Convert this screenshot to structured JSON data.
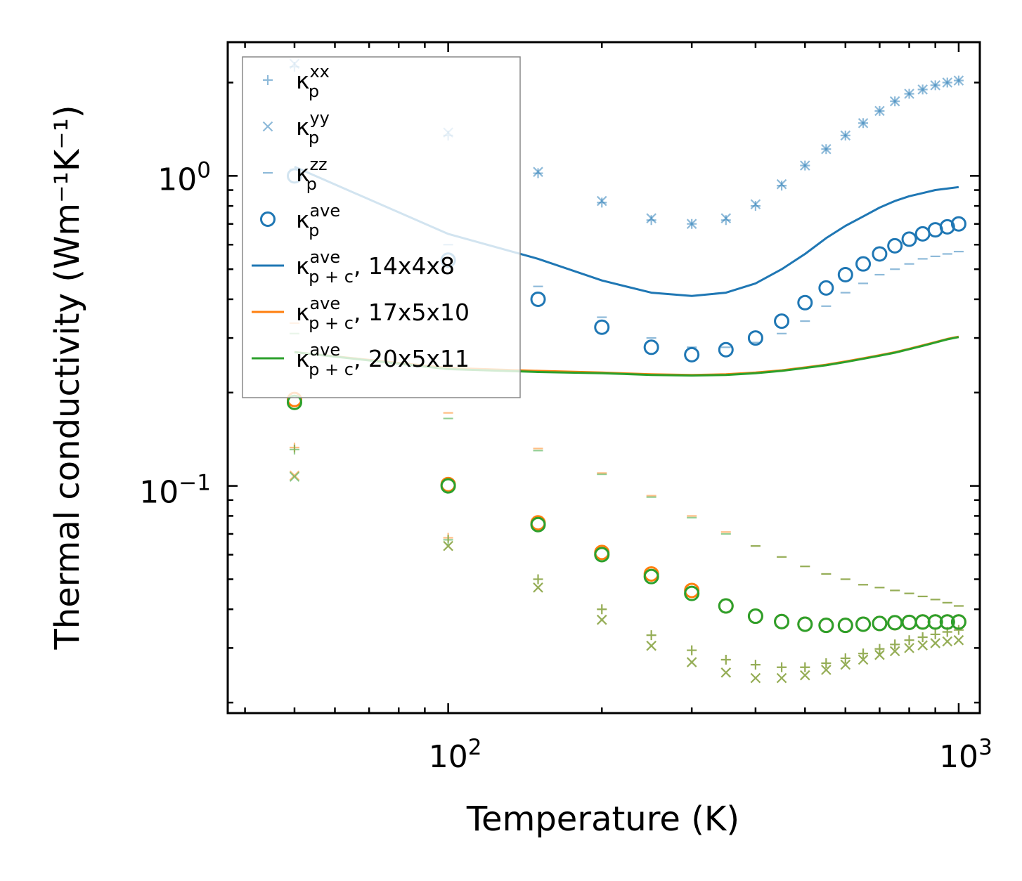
{
  "chart_data": {
    "type": "scatter",
    "xscale": "log",
    "yscale": "log",
    "xlabel": "Temperature (K)",
    "ylabel": "Thermal conductivity (Wm⁻¹K⁻¹)",
    "xlim": [
      37,
      1100
    ],
    "ylim": [
      0.0185,
      2.7
    ],
    "x_ticks": [
      {
        "base": "10",
        "exp": "2"
      },
      {
        "base": "10",
        "exp": "3"
      }
    ],
    "y_ticks": [
      {
        "base": "10",
        "exp": "−1"
      },
      {
        "base": "10",
        "exp": "0"
      }
    ],
    "x": [
      50,
      100,
      150,
      200,
      250,
      300,
      350,
      400,
      450,
      500,
      550,
      600,
      650,
      700,
      750,
      800,
      850,
      900,
      950,
      1000
    ],
    "series": [
      {
        "name": "14x4x8 kappa_p xx",
        "marker": "plus",
        "color": "#1f77b4",
        "values": [
          2.25,
          1.35,
          1.02,
          0.82,
          0.72,
          0.7,
          0.72,
          0.8,
          0.93,
          1.08,
          1.22,
          1.35,
          1.48,
          1.62,
          1.74,
          1.84,
          1.9,
          1.96,
          2.0,
          2.03
        ]
      },
      {
        "name": "14x4x8 kappa_p yy",
        "marker": "x",
        "color": "#1f77b4",
        "values": [
          2.3,
          1.38,
          1.03,
          0.83,
          0.73,
          0.7,
          0.73,
          0.81,
          0.94,
          1.08,
          1.22,
          1.35,
          1.48,
          1.62,
          1.74,
          1.84,
          1.9,
          1.96,
          2.0,
          2.03
        ]
      },
      {
        "name": "14x4x8 kappa_p zz",
        "marker": "dash",
        "color": "#1f77b4",
        "values": [
          1.05,
          0.6,
          0.44,
          0.35,
          0.3,
          0.28,
          0.28,
          0.29,
          0.31,
          0.34,
          0.38,
          0.42,
          0.45,
          0.48,
          0.5,
          0.52,
          0.54,
          0.55,
          0.56,
          0.57
        ]
      },
      {
        "name": "14x4x8 kappa_p ave",
        "marker": "circle",
        "color": "#1f77b4",
        "values": [
          1.0,
          0.535,
          0.4,
          0.325,
          0.28,
          0.265,
          0.275,
          0.3,
          0.34,
          0.39,
          0.435,
          0.48,
          0.52,
          0.56,
          0.595,
          0.625,
          0.65,
          0.67,
          0.685,
          0.7
        ]
      },
      {
        "name": "17x5x10 kappa_p xx",
        "marker": "plus",
        "color": "#ff7f0e",
        "values": [
          0.133,
          0.068,
          0.05,
          0.04,
          0.033,
          0.0295,
          0.0275,
          0.0265,
          0.026,
          0.026,
          0.0268,
          0.0278,
          0.0288,
          0.0298,
          0.0308,
          0.0318,
          0.0325,
          0.0332,
          0.0338,
          0.0343
        ]
      },
      {
        "name": "17x5x10 kappa_p yy",
        "marker": "x",
        "color": "#ff7f0e",
        "values": [
          0.108,
          0.064,
          0.047,
          0.037,
          0.0305,
          0.027,
          0.025,
          0.024,
          0.024,
          0.0245,
          0.0255,
          0.0265,
          0.0275,
          0.0285,
          0.0293,
          0.03,
          0.0306,
          0.0311,
          0.0315,
          0.0318
        ]
      },
      {
        "name": "17x5x10 kappa_p zz",
        "marker": "dash",
        "color": "#ff7f0e",
        "values": [
          0.335,
          0.172,
          0.132,
          0.11,
          0.093,
          0.08,
          0.071,
          0.064,
          0.059,
          0.055,
          0.052,
          0.05,
          0.048,
          0.047,
          0.046,
          0.045,
          0.044,
          0.043,
          0.042,
          0.041
        ]
      },
      {
        "name": "17x5x10 kappa_p ave",
        "marker": "circle",
        "color": "#ff7f0e",
        "values": [
          0.19,
          0.101,
          0.076,
          0.061,
          0.052,
          0.046,
          0.041,
          0.038,
          0.0365,
          0.0358,
          0.0355,
          0.0355,
          0.0358,
          0.036,
          0.0362,
          0.0363,
          0.0364,
          0.0364,
          0.0364,
          0.0364
        ]
      },
      {
        "name": "20x5x11 kappa_p xx",
        "marker": "plus",
        "color": "#2ca02c",
        "values": [
          0.131,
          0.067,
          0.05,
          0.04,
          0.033,
          0.0295,
          0.0275,
          0.0265,
          0.026,
          0.026,
          0.0268,
          0.0278,
          0.0288,
          0.0298,
          0.0308,
          0.0318,
          0.0325,
          0.0332,
          0.0338,
          0.0343
        ]
      },
      {
        "name": "20x5x11 kappa_p yy",
        "marker": "x",
        "color": "#2ca02c",
        "values": [
          0.107,
          0.064,
          0.047,
          0.037,
          0.0305,
          0.027,
          0.025,
          0.024,
          0.024,
          0.0245,
          0.0255,
          0.0265,
          0.0275,
          0.0285,
          0.0293,
          0.03,
          0.0306,
          0.0311,
          0.0315,
          0.0318
        ]
      },
      {
        "name": "20x5x11 kappa_p zz",
        "marker": "dash",
        "color": "#2ca02c",
        "values": [
          0.31,
          0.165,
          0.13,
          0.109,
          0.092,
          0.079,
          0.07,
          0.064,
          0.059,
          0.055,
          0.052,
          0.05,
          0.048,
          0.047,
          0.046,
          0.045,
          0.044,
          0.043,
          0.042,
          0.041
        ]
      },
      {
        "name": "20x5x11 kappa_p ave",
        "marker": "circle",
        "color": "#2ca02c",
        "values": [
          0.186,
          0.1,
          0.075,
          0.06,
          0.051,
          0.045,
          0.041,
          0.038,
          0.0365,
          0.0358,
          0.0355,
          0.0355,
          0.0358,
          0.036,
          0.0362,
          0.0363,
          0.0364,
          0.0364,
          0.0364,
          0.0364
        ]
      },
      {
        "name": "14x4x8 kappa_p+c ave",
        "marker": "line",
        "color": "#1f77b4",
        "values": [
          1.07,
          0.65,
          0.54,
          0.46,
          0.42,
          0.41,
          0.42,
          0.45,
          0.5,
          0.56,
          0.63,
          0.69,
          0.74,
          0.79,
          0.83,
          0.86,
          0.88,
          0.9,
          0.91,
          0.92
        ]
      },
      {
        "name": "17x5x10 kappa_p+c ave",
        "marker": "line",
        "color": "#ff7f0e",
        "values": [
          0.27,
          0.24,
          0.235,
          0.232,
          0.229,
          0.228,
          0.229,
          0.232,
          0.236,
          0.241,
          0.246,
          0.252,
          0.258,
          0.264,
          0.27,
          0.277,
          0.284,
          0.291,
          0.298,
          0.303
        ]
      },
      {
        "name": "20x5x11 kappa_p+c ave",
        "marker": "line",
        "color": "#2ca02c",
        "values": [
          0.27,
          0.238,
          0.233,
          0.231,
          0.228,
          0.227,
          0.228,
          0.231,
          0.235,
          0.24,
          0.245,
          0.251,
          0.257,
          0.263,
          0.269,
          0.276,
          0.283,
          0.29,
          0.297,
          0.302
        ]
      }
    ],
    "legend": {
      "placement": "top-left",
      "entries": [
        {
          "marker": "plus",
          "color": "#1f77b4",
          "main": "κ",
          "sup": "xx",
          "sub": "p",
          "suffix": ""
        },
        {
          "marker": "x",
          "color": "#1f77b4",
          "main": "κ",
          "sup": "yy",
          "sub": "p",
          "suffix": ""
        },
        {
          "marker": "dash",
          "color": "#1f77b4",
          "main": "κ",
          "sup": "zz",
          "sub": "p",
          "suffix": ""
        },
        {
          "marker": "circle",
          "color": "#1f77b4",
          "main": "κ",
          "sup": "ave",
          "sub": "p",
          "suffix": ""
        },
        {
          "marker": "line",
          "color": "#1f77b4",
          "main": "κ",
          "sup": "ave",
          "sub": "p + c",
          "suffix": ", 14x4x8"
        },
        {
          "marker": "line",
          "color": "#ff7f0e",
          "main": "κ",
          "sup": "ave",
          "sub": "p + c",
          "suffix": ", 17x5x10"
        },
        {
          "marker": "line",
          "color": "#2ca02c",
          "main": "κ",
          "sup": "ave",
          "sub": "p + c",
          "suffix": ", 20x5x11"
        }
      ]
    }
  }
}
